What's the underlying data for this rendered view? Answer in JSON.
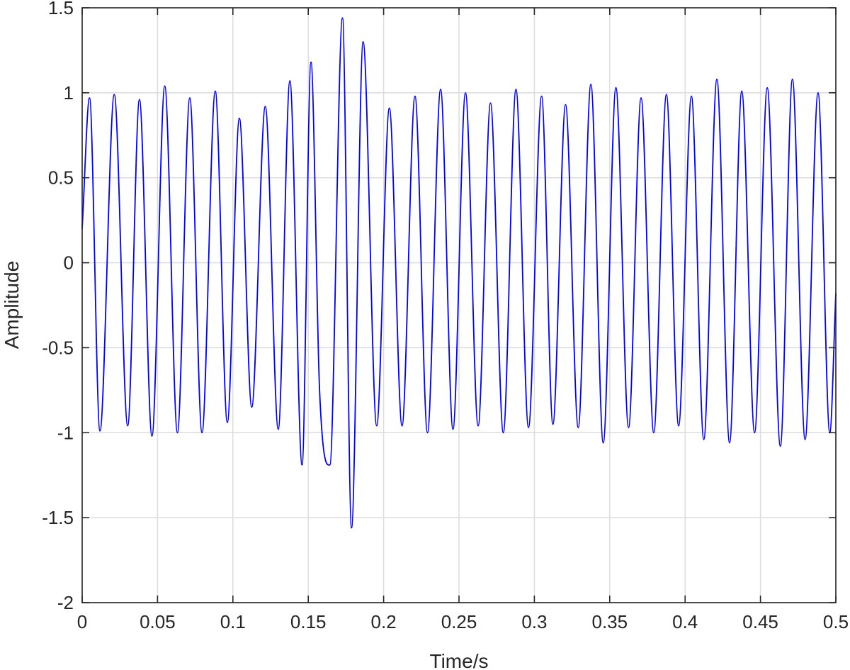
{
  "chart_data": {
    "type": "line",
    "title": "",
    "xlabel": "Time/s",
    "ylabel": "Amplitude",
    "xlim": [
      0,
      0.5
    ],
    "ylim": [
      -2,
      1.5
    ],
    "xticks": [
      0,
      0.05,
      0.1,
      0.15,
      0.2,
      0.25,
      0.3,
      0.35,
      0.4,
      0.45,
      0.5
    ],
    "xtick_labels": [
      "0",
      "0.05",
      "0.1",
      "0.15",
      "0.2",
      "0.25",
      "0.3",
      "0.35",
      "0.4",
      "0.45",
      "0.5"
    ],
    "yticks": [
      -2,
      -1.5,
      -1,
      -0.5,
      0,
      0.5,
      1,
      1.5
    ],
    "ytick_labels": [
      "-2",
      "-1.5",
      "-1",
      "-0.5",
      "0",
      "0.5",
      "1",
      "1.5"
    ],
    "grid": true,
    "series": [
      {
        "color": "#0000ff",
        "x": [
          0,
          0.0049,
          0.0118,
          0.0213,
          0.0302,
          0.038,
          0.0463,
          0.0548,
          0.0632,
          0.0714,
          0.0795,
          0.0883,
          0.0963,
          0.1043,
          0.1125,
          0.1215,
          0.1301,
          0.1378,
          0.1459,
          0.1518,
          0.1575,
          0.1643,
          0.1727,
          0.1787,
          0.1864,
          0.1954,
          0.2038,
          0.2122,
          0.2208,
          0.2291,
          0.2378,
          0.246,
          0.2543,
          0.2627,
          0.2709,
          0.2794,
          0.2878,
          0.2961,
          0.3048,
          0.3123,
          0.3207,
          0.3291,
          0.3375,
          0.3457,
          0.3541,
          0.3625,
          0.3708,
          0.3792,
          0.3876,
          0.3957,
          0.4042,
          0.4124,
          0.4211,
          0.4295,
          0.4376,
          0.4461,
          0.4545,
          0.4632,
          0.4712,
          0.4796,
          0.4882,
          0.496,
          0.5
        ],
        "y": [
          0.2,
          0.97,
          -0.99,
          0.99,
          -0.96,
          0.96,
          -1.02,
          1.04,
          -1.0,
          0.97,
          -1.0,
          1.01,
          -0.94,
          0.85,
          -0.85,
          0.92,
          -0.98,
          1.07,
          -1.19,
          1.18,
          -0.75,
          -1.19,
          1.44,
          -1.56,
          1.3,
          -0.96,
          0.91,
          -0.96,
          0.98,
          -1.0,
          1.02,
          -0.98,
          1.0,
          -0.96,
          0.94,
          -1.0,
          1.02,
          -0.97,
          0.98,
          -0.95,
          0.93,
          -0.97,
          1.05,
          -1.06,
          1.03,
          -0.97,
          0.97,
          -1.0,
          0.99,
          -0.96,
          0.98,
          -1.04,
          1.08,
          -1.06,
          1.01,
          -1.0,
          1.03,
          -1.08,
          1.08,
          -1.04,
          1.0,
          -1.0,
          -0.18
        ]
      }
    ]
  }
}
